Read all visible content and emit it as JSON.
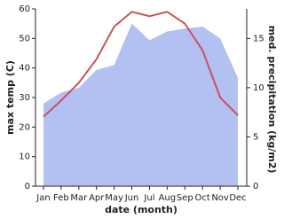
{
  "chart_data": {
    "type": "line",
    "categories": [
      "Jan",
      "Feb",
      "Mar",
      "Apr",
      "May",
      "Jun",
      "Jul",
      "Aug",
      "Sep",
      "Oct",
      "Nov",
      "Dec"
    ],
    "x_label": "date (month)",
    "y_label": "max temp (C)",
    "y2_label": "med. precipitation (kg/m2)",
    "series": [
      {
        "name": "max temp",
        "type": "line",
        "color": "#c8525c",
        "values": [
          23.5,
          29,
          35,
          43,
          54,
          59,
          57.5,
          59,
          55,
          46,
          30,
          24
        ]
      },
      {
        "name": "med. precipitation",
        "type": "area",
        "axis": "y2",
        "color": "#b2c0f2",
        "values": [
          8.4,
          9.5,
          10,
          11.8,
          12.3,
          16.5,
          14.8,
          15.7,
          16,
          16.2,
          15,
          11
        ]
      }
    ],
    "ylim": [
      0,
      60
    ],
    "yticks": [
      0,
      10,
      20,
      30,
      40,
      50,
      60
    ],
    "y2lim": [
      0,
      18
    ],
    "y2ticks": [
      0,
      5,
      10,
      15
    ]
  }
}
